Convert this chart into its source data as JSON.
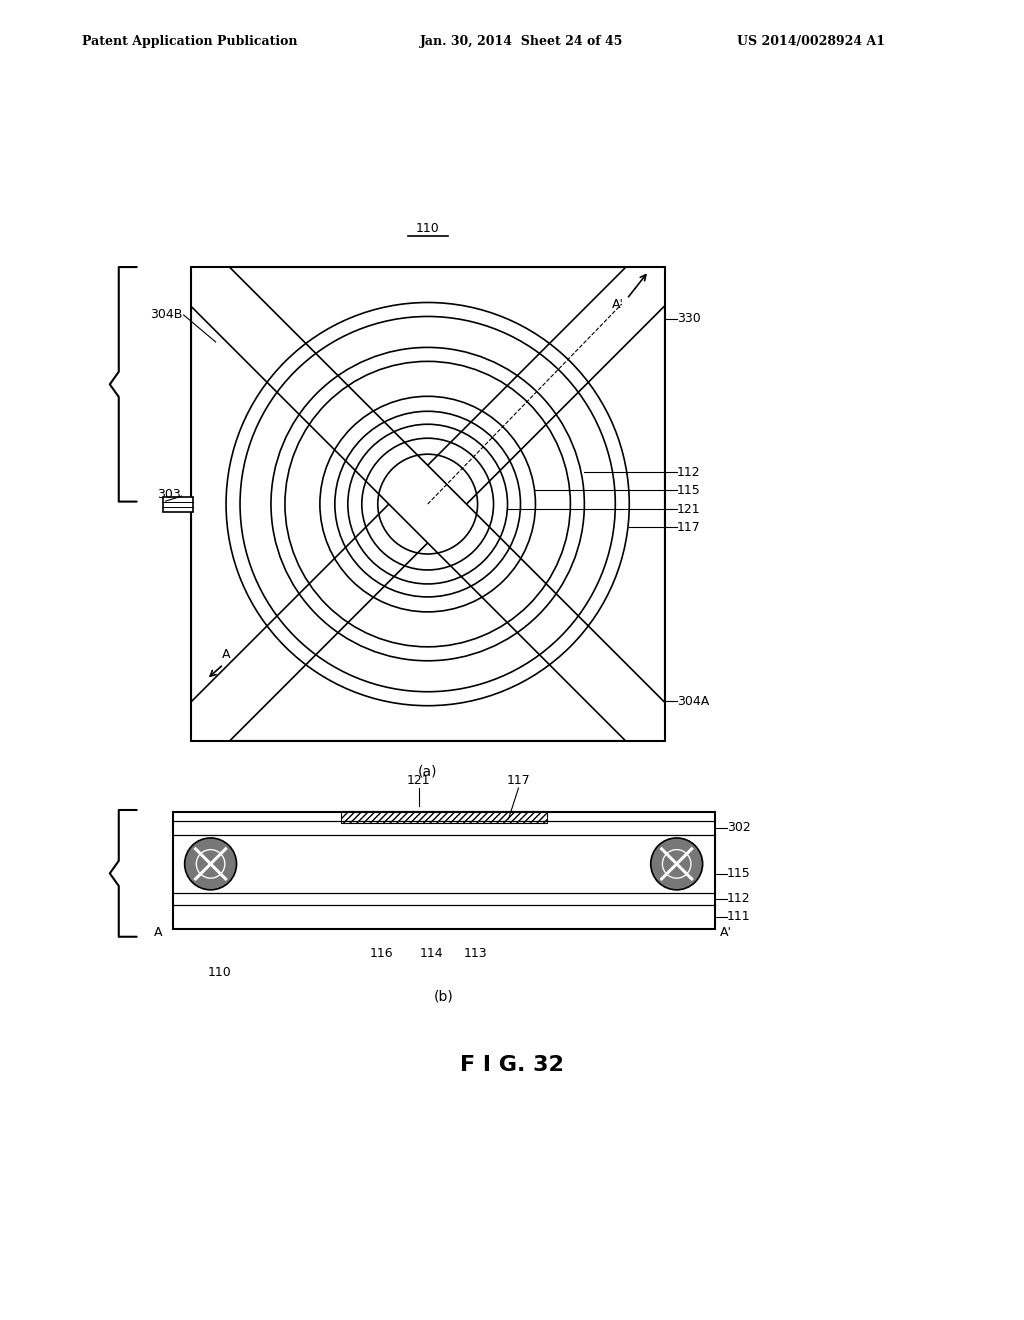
{
  "bg_color": "#ffffff",
  "line_color": "#000000",
  "header_left": "Patent Application Publication",
  "header_mid": "Jan. 30, 2014  Sheet 24 of 45",
  "header_right": "US 2014/0028924 A1",
  "fig_label": "F I G. 32",
  "sub_a_label": "(a)",
  "sub_b_label": "(b)",
  "label_110": "110",
  "label_303": "303",
  "label_304A": "304A",
  "label_304B": "304B",
  "label_330": "330",
  "label_112": "112",
  "label_115": "115",
  "label_121": "121",
  "label_117": "117",
  "label_111": "111",
  "label_113": "113",
  "label_114": "114",
  "label_116": "116",
  "label_302": "302",
  "label_A": "A",
  "label_Ap": "A'",
  "label_110b": "110"
}
